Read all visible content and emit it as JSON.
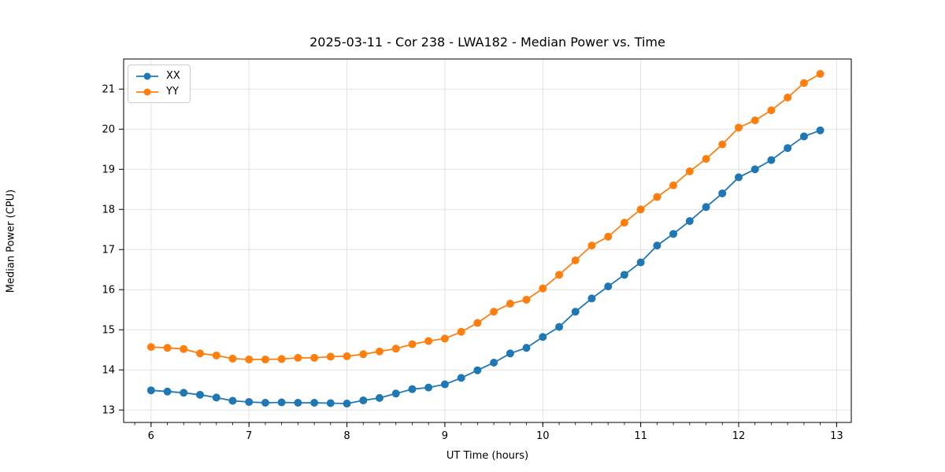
{
  "figure": {
    "title": "2025-03-11 - Cor 238 - LWA182 - Median Power vs. Time"
  },
  "legend": {
    "items": [
      {
        "label": "XX",
        "color": "#1f77b4"
      },
      {
        "label": "YY",
        "color": "#ff7f0e"
      }
    ]
  },
  "chart_data": {
    "type": "line",
    "title": "2025-03-11 - Cor 238 - LWA182 - Median Power vs. Time",
    "xlabel": "UT Time (hours)",
    "ylabel": "Median Power (CPU)",
    "xlim": [
      5.72,
      13.15
    ],
    "ylim": [
      12.69,
      21.75
    ],
    "xticks": [
      6,
      7,
      8,
      9,
      10,
      11,
      12,
      13
    ],
    "yticks": [
      13,
      14,
      15,
      16,
      17,
      18,
      19,
      20,
      21
    ],
    "minor_xtick_step": 0.1666667,
    "grid": true,
    "legend_position": "upper left",
    "marker": "o",
    "x": [
      6.0,
      6.167,
      6.333,
      6.5,
      6.667,
      6.833,
      7.0,
      7.167,
      7.333,
      7.5,
      7.667,
      7.833,
      8.0,
      8.167,
      8.333,
      8.5,
      8.667,
      8.833,
      9.0,
      9.167,
      9.333,
      9.5,
      9.667,
      9.833,
      10.0,
      10.167,
      10.333,
      10.5,
      10.667,
      10.833,
      11.0,
      11.167,
      11.333,
      11.5,
      11.667,
      11.833,
      12.0,
      12.167,
      12.333,
      12.5,
      12.667,
      12.833
    ],
    "series": [
      {
        "name": "XX",
        "color": "#1f77b4",
        "values": [
          13.49,
          13.46,
          13.43,
          13.38,
          13.31,
          13.23,
          13.2,
          13.18,
          13.19,
          13.18,
          13.18,
          13.17,
          13.16,
          13.24,
          13.3,
          13.41,
          13.52,
          13.56,
          13.64,
          13.8,
          13.99,
          14.18,
          14.41,
          14.55,
          14.82,
          15.07,
          15.45,
          15.78,
          16.08,
          16.37,
          16.68,
          17.1,
          17.39,
          17.71,
          18.06,
          18.4,
          18.8,
          19.0,
          19.23,
          19.53,
          19.82,
          19.97
        ]
      },
      {
        "name": "YY",
        "color": "#ff7f0e",
        "values": [
          14.57,
          14.55,
          14.52,
          14.41,
          14.36,
          14.28,
          14.26,
          14.26,
          14.27,
          14.3,
          14.3,
          14.33,
          14.34,
          14.39,
          14.46,
          14.53,
          14.64,
          14.72,
          14.78,
          14.95,
          15.17,
          15.45,
          15.65,
          15.75,
          16.03,
          16.37,
          16.73,
          17.1,
          17.32,
          17.67,
          18.0,
          18.31,
          18.6,
          18.95,
          19.26,
          19.62,
          20.04,
          20.22,
          20.47,
          20.79,
          21.15,
          21.38
        ]
      }
    ],
    "style": {
      "grid_color": "#e2e2e2",
      "spine_color": "#000000",
      "marker_radius": 5,
      "line_width": 1.8
    }
  }
}
